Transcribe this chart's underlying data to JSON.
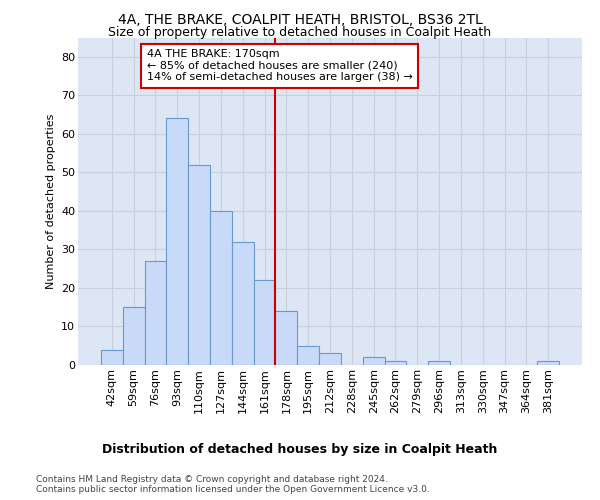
{
  "title": "4A, THE BRAKE, COALPIT HEATH, BRISTOL, BS36 2TL",
  "subtitle": "Size of property relative to detached houses in Coalpit Heath",
  "xlabel": "Distribution of detached houses by size in Coalpit Heath",
  "ylabel": "Number of detached properties",
  "footer1": "Contains HM Land Registry data © Crown copyright and database right 2024.",
  "footer2": "Contains public sector information licensed under the Open Government Licence v3.0.",
  "bin_labels": [
    "42sqm",
    "59sqm",
    "76sqm",
    "93sqm",
    "110sqm",
    "127sqm",
    "144sqm",
    "161sqm",
    "178sqm",
    "195sqm",
    "212sqm",
    "228sqm",
    "245sqm",
    "262sqm",
    "279sqm",
    "296sqm",
    "313sqm",
    "330sqm",
    "347sqm",
    "364sqm",
    "381sqm"
  ],
  "bar_heights": [
    4,
    15,
    27,
    64,
    52,
    40,
    32,
    22,
    14,
    5,
    3,
    0,
    2,
    1,
    0,
    1,
    0,
    0,
    0,
    0,
    1
  ],
  "bar_color": "#c9daf8",
  "bar_edge_color": "#6699cc",
  "vline_color": "#cc0000",
  "annotation_line1": "4A THE BRAKE: 170sqm",
  "annotation_line2": "← 85% of detached houses are smaller (240)",
  "annotation_line3": "14% of semi-detached houses are larger (38) →",
  "annotation_box_color": "#ffffff",
  "annotation_box_edge": "#cc0000",
  "ylim": [
    0,
    85
  ],
  "yticks": [
    0,
    10,
    20,
    30,
    40,
    50,
    60,
    70,
    80
  ],
  "grid_color": "#c8d0dc",
  "background_color": "#dce6f4",
  "title_fontsize": 10,
  "subtitle_fontsize": 9,
  "ylabel_fontsize": 8,
  "xlabel_fontsize": 9,
  "tick_fontsize": 8,
  "annot_fontsize": 8,
  "footer_fontsize": 6.5,
  "vline_x_index": 7.5
}
